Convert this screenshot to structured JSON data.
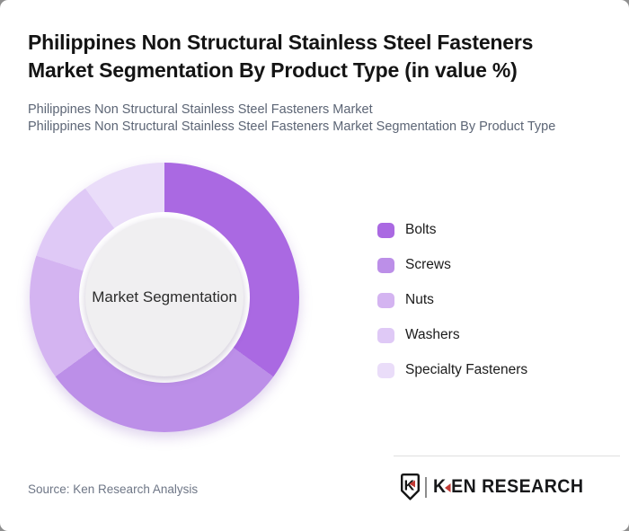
{
  "header": {
    "title_line1": "Philippines Non Structural Stainless Steel Fasteners",
    "title_line2": "Market Segmentation By Product Type (in value %)",
    "subtitle1": "Philippines Non Structural Stainless Steel Fasteners Market",
    "subtitle2": "Philippines Non Structural Stainless Steel Fasteners Market Segmentation By Product Type"
  },
  "chart_data": {
    "type": "pie",
    "subtype": "donut",
    "title": "Philippines Non Structural Stainless Steel Fasteners Market Segmentation By Product Type (in value %)",
    "center_label": "Market Segmentation",
    "labels": [
      "Bolts",
      "Screws",
      "Nuts",
      "Washers",
      "Specialty Fasteners"
    ],
    "values": [
      35,
      30,
      15,
      10,
      10
    ],
    "unit": "% of market value (estimated from segment angles; no numeric labels shown)",
    "colors": [
      "#aa69e2",
      "#bc8fe8",
      "#d4b4f1",
      "#dfc9f6",
      "#eaddf9"
    ],
    "start_angle_deg": 0,
    "direction": "clockwise",
    "legend_position": "right",
    "center_bg": "#f0eff1"
  },
  "footer": {
    "source": "Source: Ken Research Analysis",
    "logo_monogram": "K",
    "brand_first_letter": "K",
    "brand_rest": "EN RESEARCH",
    "accent_red": "#c23a34"
  }
}
